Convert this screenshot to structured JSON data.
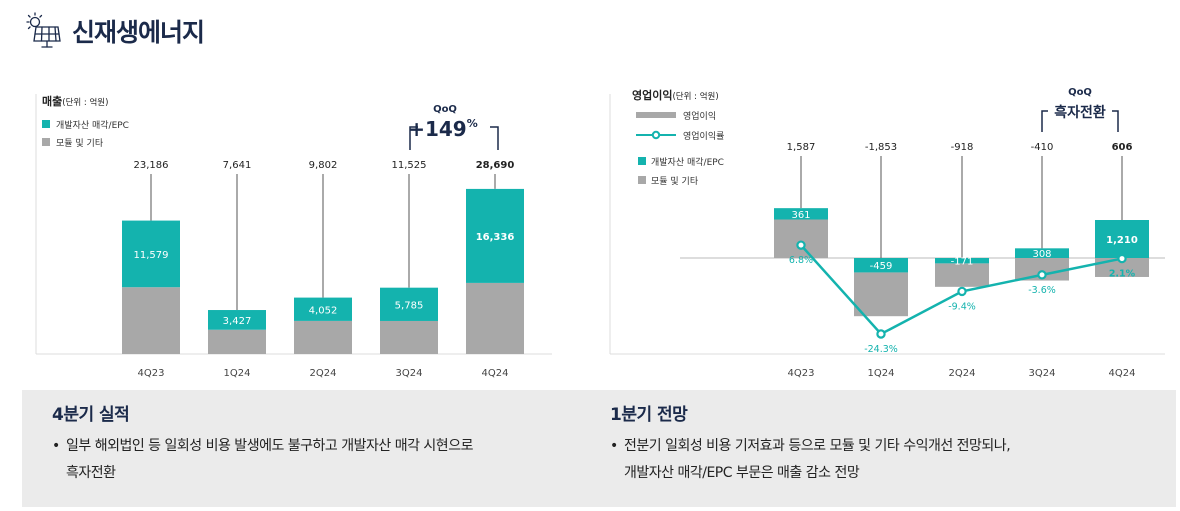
{
  "page": {
    "title": "신재생에너지"
  },
  "colors": {
    "teal": "#14b3ae",
    "gray": "#a8a8a8",
    "navy": "#1b2a4a",
    "panel": "#ebebeb"
  },
  "chart_data": [
    {
      "type": "bar",
      "stacked": true,
      "title": "매출",
      "unit": "(단위 : 억원)",
      "categories": [
        "4Q23",
        "1Q24",
        "2Q24",
        "3Q24",
        "4Q24"
      ],
      "totals": [
        23186,
        7641,
        9802,
        11525,
        28690
      ],
      "total_labels": [
        "23,186",
        "7,641",
        "9,802",
        "11,525",
        "28,690"
      ],
      "series": [
        {
          "name": "개발자산 매각/EPC",
          "values": [
            11579,
            3427,
            4052,
            5785,
            16336
          ],
          "labels": [
            "11,579",
            "3,427",
            "4,052",
            "5,785",
            "16,336"
          ],
          "color": "#14b3ae"
        },
        {
          "name": "모듈 및 기타",
          "values": [
            11607,
            4214,
            5750,
            5740,
            12354
          ],
          "color": "#a8a8a8"
        }
      ],
      "annotation": {
        "label": "QoQ",
        "value": "+149",
        "unit": "%"
      },
      "grid": false,
      "legend": "top-left"
    },
    {
      "type": "bar+line",
      "stacked": true,
      "title": "영업이익",
      "unit": "(단위 : 억원)",
      "categories": [
        "4Q23",
        "1Q24",
        "2Q24",
        "3Q24",
        "4Q24"
      ],
      "totals": [
        1587,
        -1853,
        -918,
        -410,
        606
      ],
      "total_labels": [
        "1,587",
        "-1,853",
        "-918",
        "-410",
        "606"
      ],
      "series": [
        {
          "name": "개발자산 매각/EPC",
          "values": [
            361,
            -459,
            -171,
            308,
            1210
          ],
          "labels": [
            "361",
            "-459",
            "-171",
            "308",
            "1,210"
          ],
          "color": "#14b3ae"
        },
        {
          "name": "모듈 및 기타",
          "values": [
            1226,
            -1394,
            -747,
            -718,
            -604
          ],
          "color": "#a8a8a8"
        }
      ],
      "line": {
        "name": "영업이익률",
        "values": [
          6.8,
          -24.3,
          -9.4,
          -3.6,
          2.1
        ],
        "labels": [
          "6.8%",
          "-24.3%",
          "-9.4%",
          "-3.6%",
          "2.1%"
        ],
        "unit": "%"
      },
      "legend_items": [
        "영업이익",
        "영업이익률",
        "개발자산 매각/EPC",
        "모듈 및 기타"
      ],
      "annotation": {
        "label": "QoQ",
        "value": "흑자전환"
      },
      "grid": false,
      "legend": "top-left"
    }
  ],
  "sections": [
    {
      "title": "4분기 실적",
      "bullet": "•",
      "text": "일부 해외법인 등 일회성 비용 발생에도 불구하고 개발자산 매각 시현으로\n흑자전환"
    },
    {
      "title": "1분기 전망",
      "bullet": "•",
      "text": "전분기 일회성 비용 기저효과 등으로 모듈 및 기타 수익개선 전망되나,\n개발자산 매각/EPC 부문은 매출 감소 전망"
    }
  ]
}
